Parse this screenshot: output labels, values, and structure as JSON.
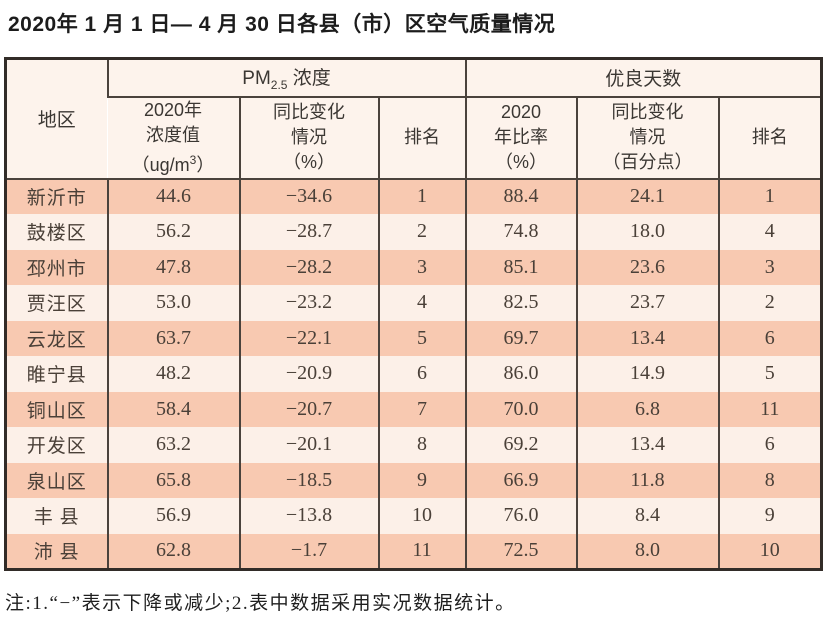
{
  "page": {
    "title": "2020年 1 月 1 日— 4 月 30 日各县（市）区空气质量情况",
    "note": "注:1.“−”表示下降或减少;2.表中数据采用实况数据统计。"
  },
  "colors": {
    "row_odd": "#f8c9b1",
    "row_even": "#fcf0e8",
    "header_bg": "#fdf3ec",
    "grid_line": "#4a423c",
    "outer_border": "#322c28"
  },
  "table": {
    "headers": {
      "region": "地区",
      "pm_group": {
        "prefix": "PM",
        "sub": "2.5",
        "suffix": " 浓度"
      },
      "good_group": "优良天数",
      "pm_value": {
        "line1": "2020年",
        "line2": "浓度值",
        "line3_pre": "（ug/m",
        "line3_sup": "3",
        "line3_post": "）"
      },
      "pm_change": {
        "line1": "同比变化",
        "line2": "情况",
        "line3": "（%）"
      },
      "pm_rank": "排名",
      "ratio": {
        "line1": "2020",
        "line2": "年比率",
        "line3": "（%）"
      },
      "ratio_change": {
        "line1": "同比变化",
        "line2": "情况",
        "line3": "（百分点）"
      },
      "ratio_rank": "排名"
    },
    "rows": [
      {
        "region": "新沂市",
        "pm_value": "44.6",
        "pm_change": "−34.6",
        "pm_rank": "1",
        "ratio": "88.4",
        "ratio_change": "24.1",
        "ratio_rank": "1"
      },
      {
        "region": "鼓楼区",
        "pm_value": "56.2",
        "pm_change": "−28.7",
        "pm_rank": "2",
        "ratio": "74.8",
        "ratio_change": "18.0",
        "ratio_rank": "4"
      },
      {
        "region": "邳州市",
        "pm_value": "47.8",
        "pm_change": "−28.2",
        "pm_rank": "3",
        "ratio": "85.1",
        "ratio_change": "23.6",
        "ratio_rank": "3"
      },
      {
        "region": "贾汪区",
        "pm_value": "53.0",
        "pm_change": "−23.2",
        "pm_rank": "4",
        "ratio": "82.5",
        "ratio_change": "23.7",
        "ratio_rank": "2"
      },
      {
        "region": "云龙区",
        "pm_value": "63.7",
        "pm_change": "−22.1",
        "pm_rank": "5",
        "ratio": "69.7",
        "ratio_change": "13.4",
        "ratio_rank": "6"
      },
      {
        "region": "睢宁县",
        "pm_value": "48.2",
        "pm_change": "−20.9",
        "pm_rank": "6",
        "ratio": "86.0",
        "ratio_change": "14.9",
        "ratio_rank": "5"
      },
      {
        "region": "铜山区",
        "pm_value": "58.4",
        "pm_change": "−20.7",
        "pm_rank": "7",
        "ratio": "70.0",
        "ratio_change": "6.8",
        "ratio_rank": "11"
      },
      {
        "region": "开发区",
        "pm_value": "63.2",
        "pm_change": "−20.1",
        "pm_rank": "8",
        "ratio": "69.2",
        "ratio_change": "13.4",
        "ratio_rank": "6"
      },
      {
        "region": "泉山区",
        "pm_value": "65.8",
        "pm_change": "−18.5",
        "pm_rank": "9",
        "ratio": "66.9",
        "ratio_change": "11.8",
        "ratio_rank": "8"
      },
      {
        "region": "丰 县",
        "pm_value": "56.9",
        "pm_change": "−13.8",
        "pm_rank": "10",
        "ratio": "76.0",
        "ratio_change": "8.4",
        "ratio_rank": "9"
      },
      {
        "region": "沛 县",
        "pm_value": "62.8",
        "pm_change": "−1.7",
        "pm_rank": "11",
        "ratio": "72.5",
        "ratio_change": "8.0",
        "ratio_rank": "10"
      }
    ]
  }
}
